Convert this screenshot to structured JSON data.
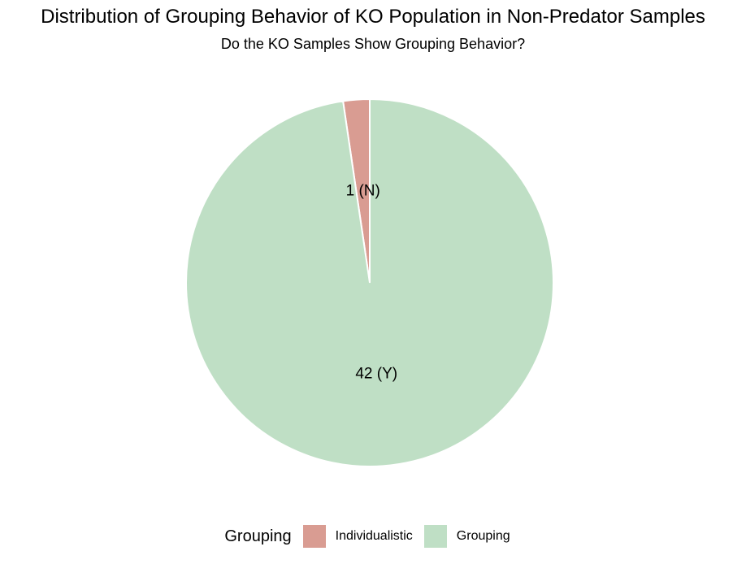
{
  "chart_data": {
    "type": "pie",
    "title": "Distribution of Grouping Behavior of KO Population in Non-Predator Samples",
    "subtitle": "Do the KO Samples Show Grouping Behavior?",
    "legend_title": "Grouping",
    "legend_position": "bottom",
    "slices": [
      {
        "name": "Individualistic",
        "value": 1,
        "label": "1 (N)",
        "color": "#d99c92"
      },
      {
        "name": "Grouping",
        "value": 42,
        "label": "42 (Y)",
        "color": "#bfdfc5"
      }
    ]
  }
}
